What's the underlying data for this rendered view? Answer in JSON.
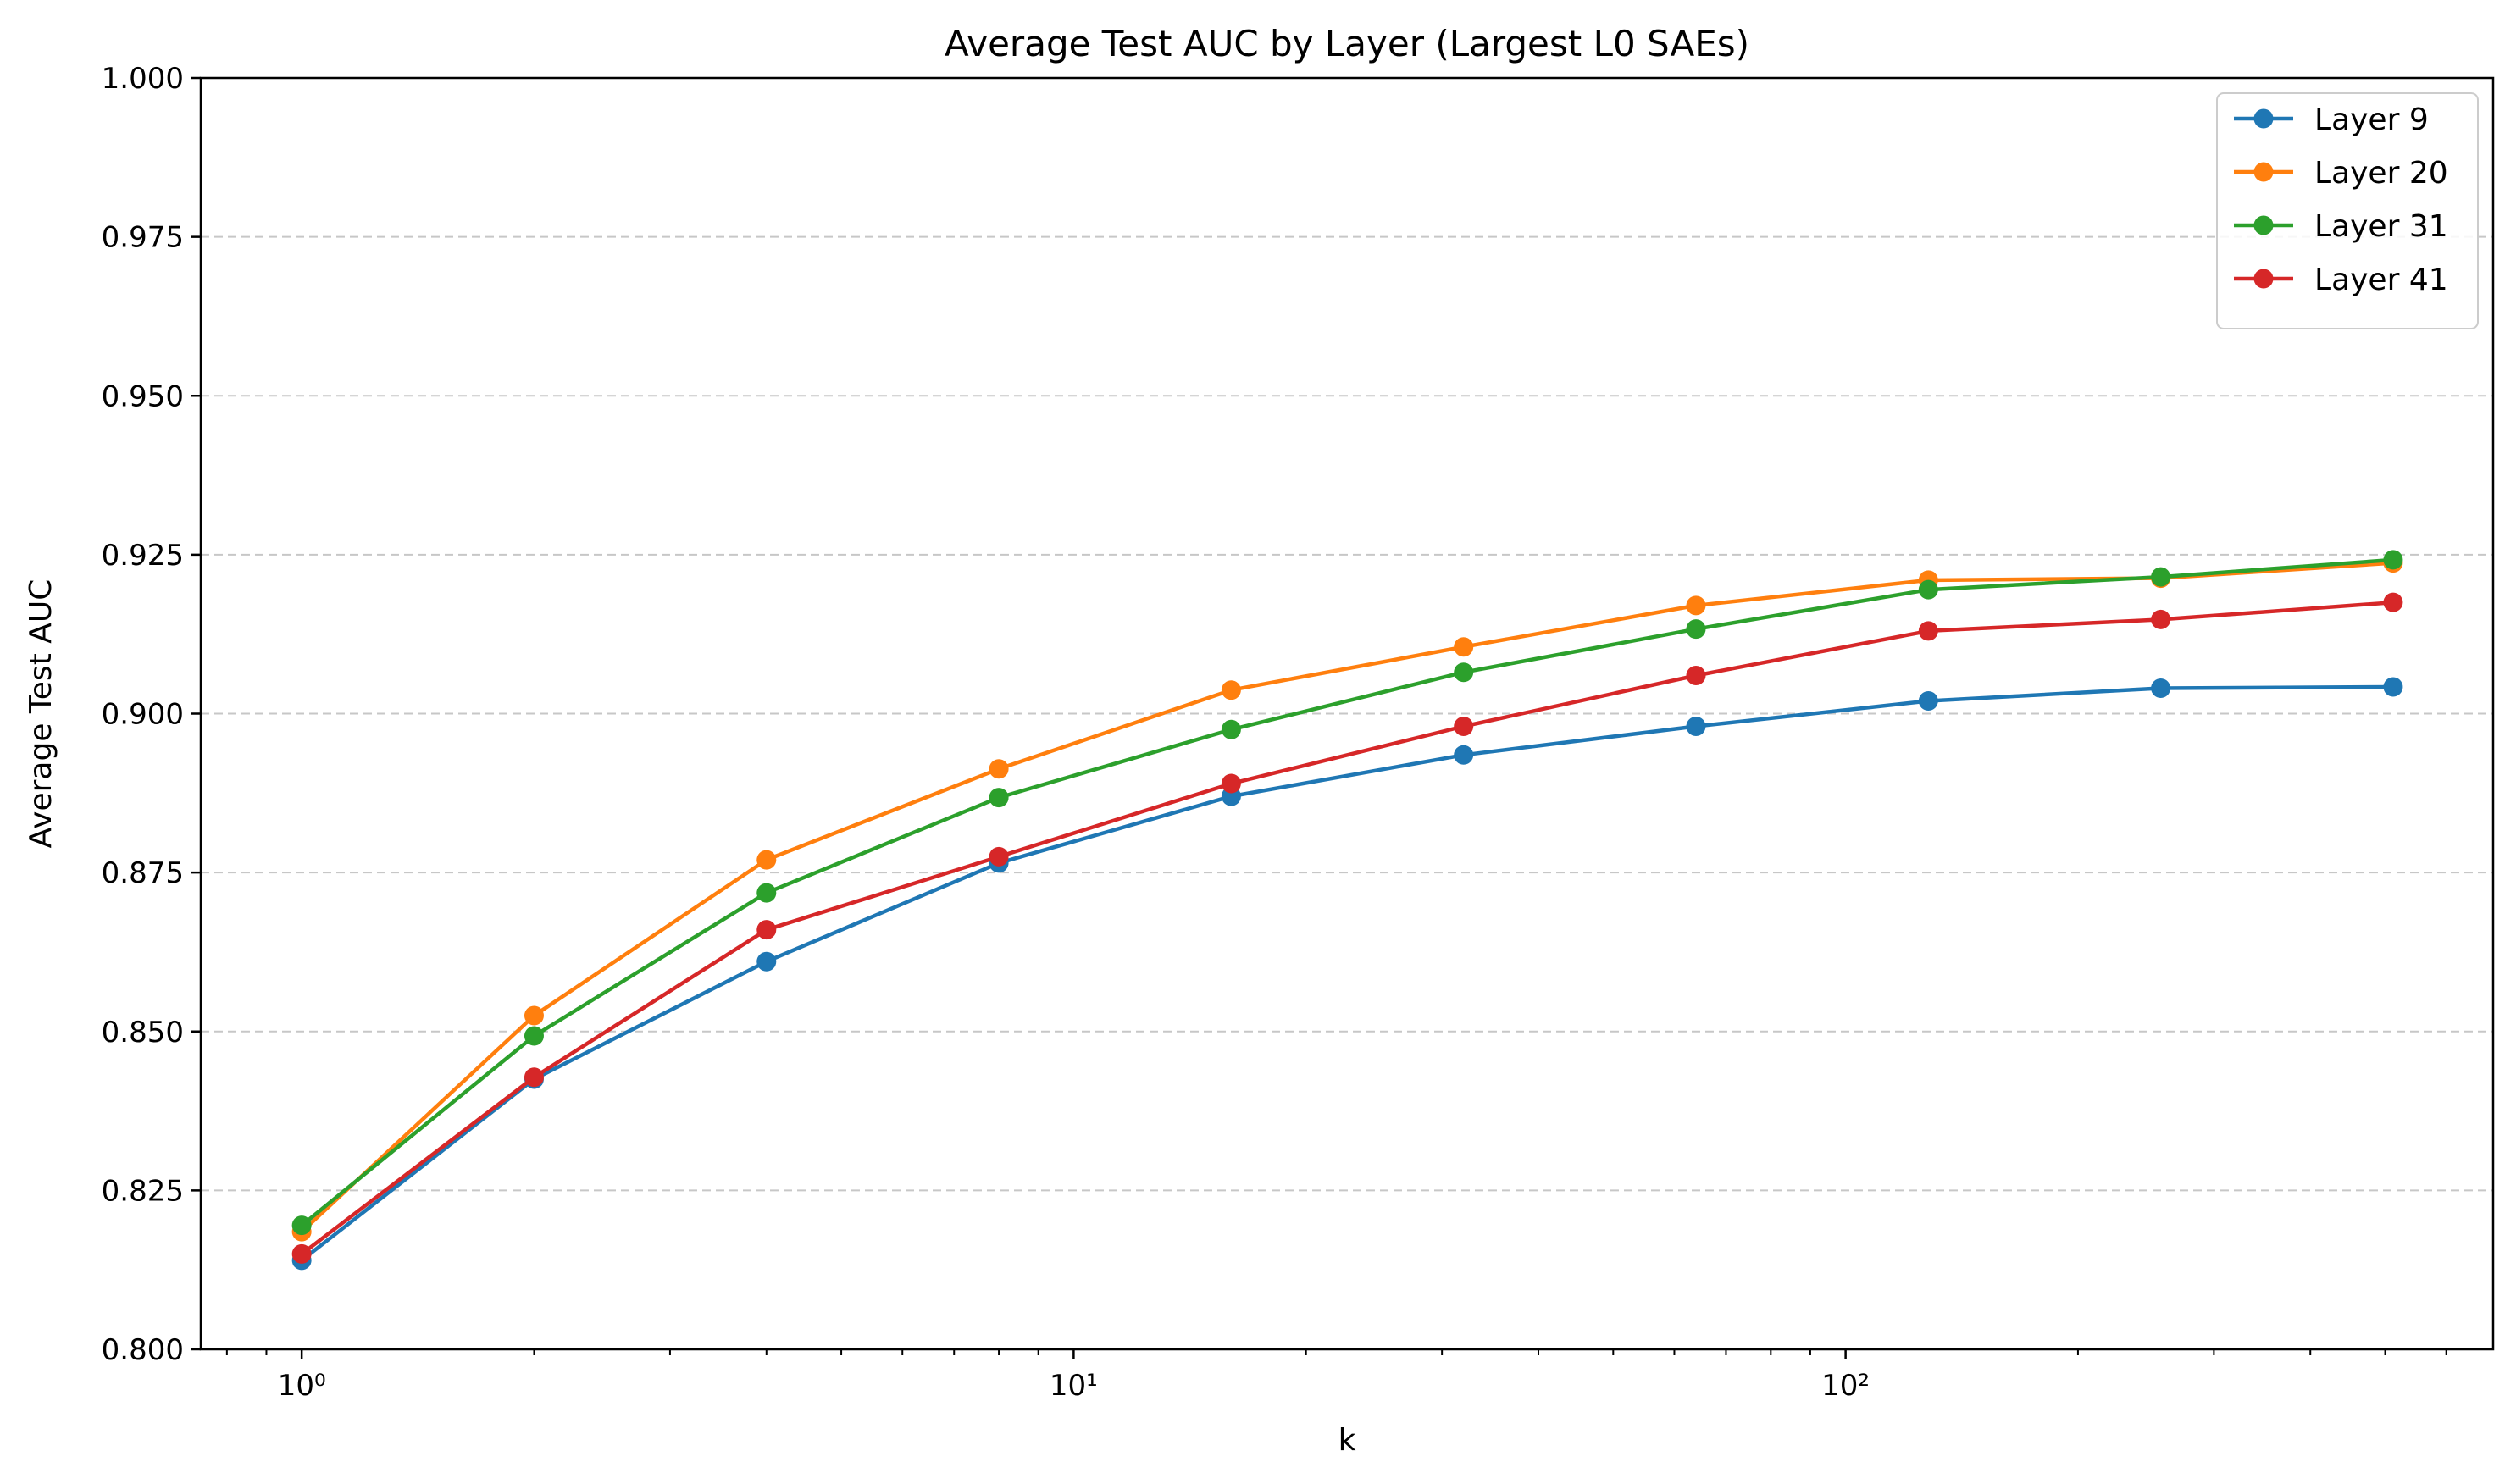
{
  "chart_data": {
    "type": "line",
    "title": "Average Test AUC by Layer (Largest L0 SAEs)",
    "xlabel": "k",
    "ylabel": "Average Test AUC",
    "xscale": "log",
    "xlim": [
      0.74,
      690
    ],
    "ylim": [
      0.8,
      1.0
    ],
    "x_tick_labels": [
      "10⁰",
      "10¹",
      "10²"
    ],
    "y_tick_labels": [
      "0.800",
      "0.825",
      "0.850",
      "0.875",
      "0.900",
      "0.925",
      "0.950",
      "0.975",
      "1.000"
    ],
    "grid": "horizontal dashed",
    "legend_position": "top-right",
    "x": [
      1,
      2,
      4,
      8,
      16,
      32,
      64,
      128,
      256,
      512
    ],
    "series": [
      {
        "name": "Layer 9",
        "color": "#1f77b4",
        "values": [
          0.814,
          0.8425,
          0.861,
          0.8765,
          0.887,
          0.8935,
          0.898,
          0.902,
          0.904,
          0.9042
        ]
      },
      {
        "name": "Layer 20",
        "color": "#ff7f0e",
        "values": [
          0.8185,
          0.8525,
          0.877,
          0.8913,
          0.9037,
          0.9105,
          0.917,
          0.921,
          0.9213,
          0.9237
        ]
      },
      {
        "name": "Layer 31",
        "color": "#2ca02c",
        "values": [
          0.8195,
          0.8493,
          0.8718,
          0.8868,
          0.8975,
          0.9065,
          0.9133,
          0.9195,
          0.9215,
          0.9242
        ]
      },
      {
        "name": "Layer 41",
        "color": "#d62728",
        "values": [
          0.815,
          0.8428,
          0.866,
          0.8775,
          0.889,
          0.898,
          0.906,
          0.913,
          0.9148,
          0.9175
        ]
      }
    ]
  }
}
